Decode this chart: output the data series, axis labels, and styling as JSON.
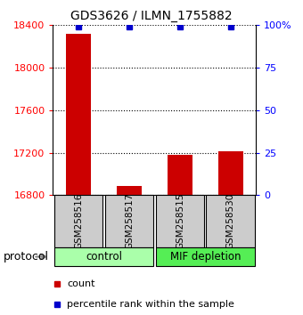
{
  "title": "GDS3626 / ILMN_1755882",
  "samples": [
    "GSM258516",
    "GSM258517",
    "GSM258515",
    "GSM258530"
  ],
  "counts": [
    18320,
    16890,
    17180,
    17210
  ],
  "percentile_ranks": [
    99,
    99,
    99,
    99
  ],
  "ylim_left": [
    16800,
    18400
  ],
  "ylim_right": [
    0,
    100
  ],
  "yticks_left": [
    16800,
    17200,
    17600,
    18000,
    18400
  ],
  "yticks_right": [
    0,
    25,
    50,
    75,
    100
  ],
  "ytick_right_labels": [
    "0",
    "25",
    "50",
    "75",
    "100%"
  ],
  "bar_color": "#cc0000",
  "dot_color": "#0000cc",
  "group_control_color": "#aaffaa",
  "group_mif_color": "#55ee55",
  "protocol_label": "protocol",
  "legend_count_label": "count",
  "legend_pct_label": "percentile rank within the sample",
  "sample_box_color": "#cccccc",
  "sample_box_edge": "#000000",
  "bar_width": 0.5
}
